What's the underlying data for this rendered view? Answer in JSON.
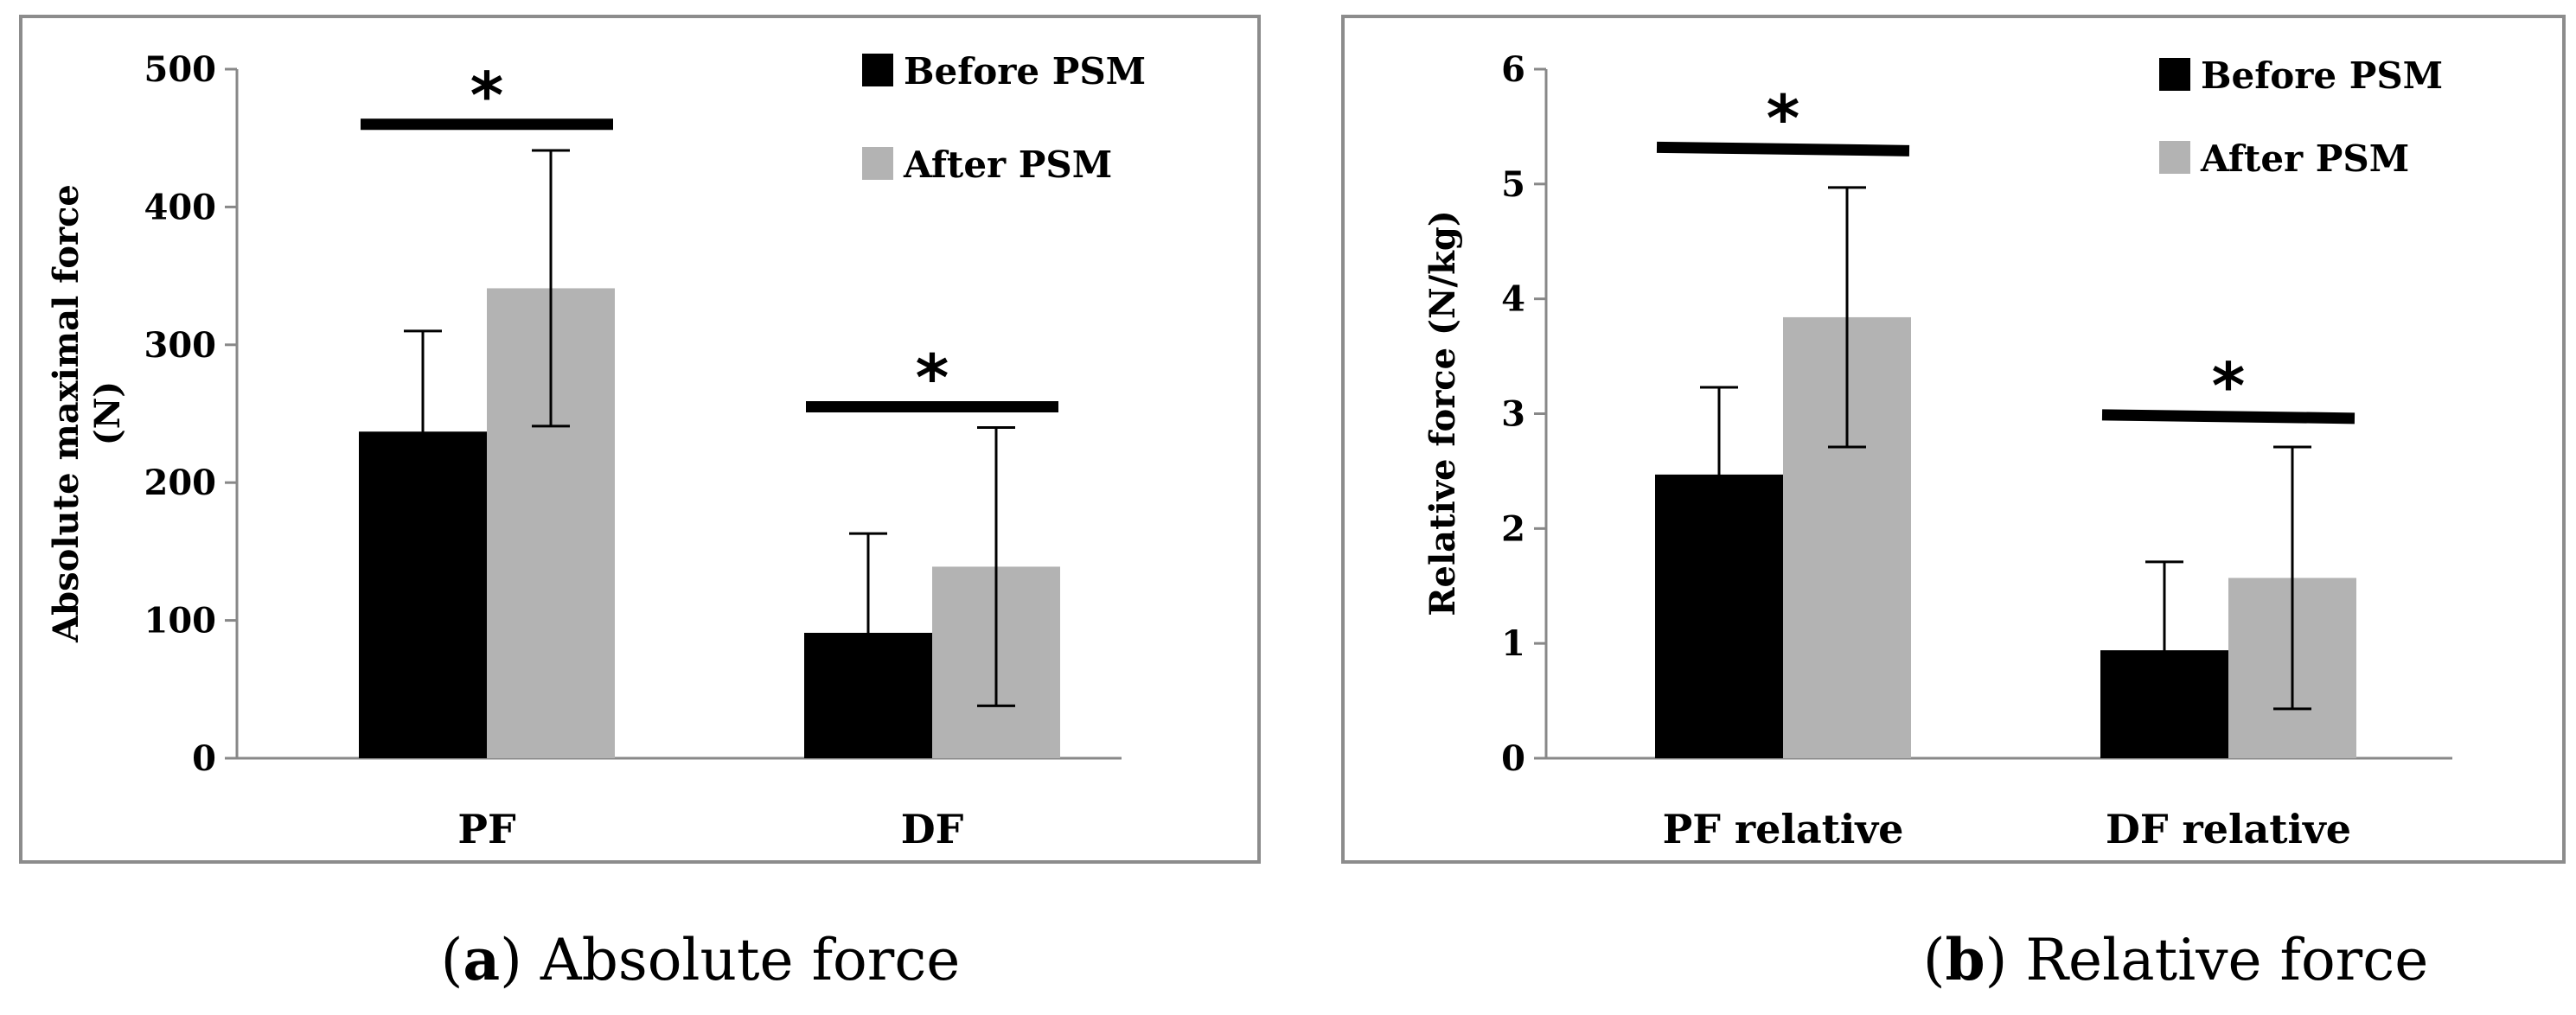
{
  "chart_data": [
    {
      "type": "bar",
      "panel_letter": "a",
      "caption": "Absolute force",
      "categories": [
        "PF",
        "DF"
      ],
      "series": [
        {
          "name": "Before PSM",
          "color": "#000000",
          "values": [
            237,
            91
          ],
          "errors": [
            73,
            72
          ]
        },
        {
          "name": "After PSM",
          "color": "#b3b3b3",
          "values": [
            341,
            139
          ],
          "errors": [
            100,
            101
          ]
        }
      ],
      "ylabel_lines": [
        "Absolute maximal force",
        "(N)"
      ],
      "ylim": [
        0,
        500
      ],
      "yticks": [
        "0",
        "100",
        "200",
        "300",
        "400",
        "500"
      ],
      "significance": [
        {
          "category": "PF",
          "label": "*",
          "level": 460
        },
        {
          "category": "DF",
          "label": "*",
          "level": 255
        }
      ],
      "legend_position": "top-right",
      "grid": false
    },
    {
      "type": "bar",
      "panel_letter": "b",
      "caption": "Relative force",
      "categories": [
        "PF relative",
        "DF relative"
      ],
      "series": [
        {
          "name": "Before PSM",
          "color": "#000000",
          "values": [
            2.47,
            0.94
          ],
          "errors": [
            0.76,
            0.77
          ]
        },
        {
          "name": "After PSM",
          "color": "#b3b3b3",
          "values": [
            3.84,
            1.57
          ],
          "errors": [
            1.13,
            1.14
          ]
        }
      ],
      "ylabel_lines": [
        "Relative force (N/kg)"
      ],
      "ylim": [
        0,
        6
      ],
      "yticks": [
        "0",
        "1",
        "2",
        "3",
        "4",
        "5",
        "6"
      ],
      "significance": [
        {
          "category": "PF relative",
          "label": "*",
          "level": 5.32
        },
        {
          "category": "DF relative",
          "label": "*",
          "level": 2.99
        }
      ],
      "legend_position": "top-right",
      "grid": false
    }
  ]
}
